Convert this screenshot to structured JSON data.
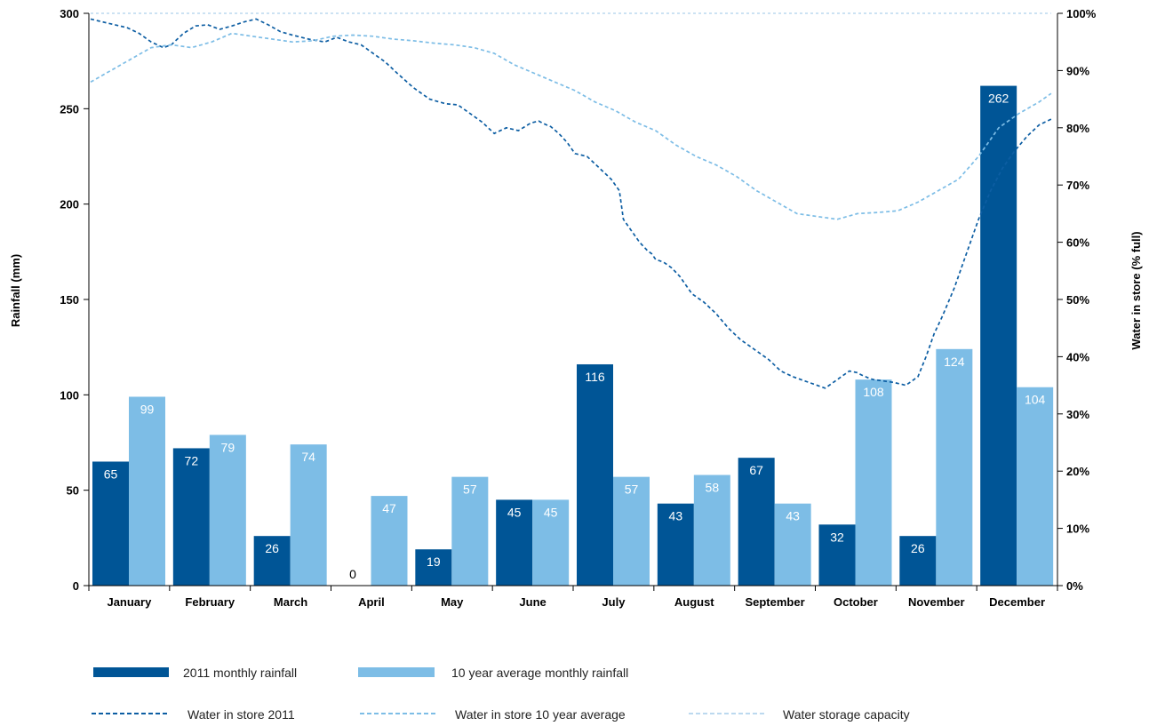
{
  "chart_data": {
    "type": "bar",
    "categories": [
      "January",
      "February",
      "March",
      "April",
      "May",
      "June",
      "July",
      "August",
      "September",
      "October",
      "November",
      "December"
    ],
    "ylabel": "Rainfall (mm)",
    "y2label": "Water in store (% full)",
    "ylim": [
      0,
      300
    ],
    "yticks": [
      "0",
      "50",
      "100",
      "150",
      "200",
      "250",
      "300"
    ],
    "y2lim": [
      0,
      100
    ],
    "y2ticks": [
      "0%",
      "10%",
      "20%",
      "30%",
      "40%",
      "50%",
      "60%",
      "70%",
      "80%",
      "90%",
      "100%"
    ],
    "grid": false,
    "legend_position": "bottom",
    "series": [
      {
        "name": "2011 monthly rainfall",
        "kind": "bar",
        "color": "#005596",
        "label_color": "#ffffff",
        "values": [
          65,
          72,
          26,
          0,
          19,
          45,
          116,
          43,
          67,
          32,
          26,
          262
        ]
      },
      {
        "name": "10 year average monthly rainfall",
        "kind": "bar",
        "color": "#7dbde6",
        "label_color": "#ffffff",
        "values": [
          99,
          79,
          74,
          47,
          57,
          45,
          57,
          58,
          43,
          108,
          124,
          104
        ]
      },
      {
        "name": "Water in store 2011",
        "kind": "line",
        "style": "dashed",
        "axis": "right",
        "color": "#0d5ea3",
        "x": [
          0,
          0.15,
          0.3,
          0.45,
          0.6,
          0.75,
          0.9,
          1.0,
          1.15,
          1.3,
          1.45,
          1.6,
          1.75,
          1.9,
          2.05,
          2.2,
          2.35,
          2.5,
          2.7,
          2.9,
          3.05,
          3.2,
          3.35,
          3.5,
          3.65,
          3.8,
          4.0,
          4.2,
          4.4,
          4.55,
          4.7,
          4.85,
          5.0,
          5.15,
          5.3,
          5.45,
          5.55,
          5.6,
          5.65,
          5.7,
          5.8,
          5.9,
          6.0,
          6.15,
          6.3,
          6.45,
          6.55,
          6.6,
          6.7,
          6.8,
          6.9,
          6.95,
          7.0,
          7.1,
          7.2,
          7.3,
          7.35,
          7.45,
          7.6,
          7.75,
          7.9,
          8.05,
          8.2,
          8.4,
          8.55,
          8.7,
          8.9,
          9.1,
          9.25,
          9.4,
          9.5,
          9.55,
          9.6,
          9.65,
          9.7,
          9.8,
          9.95,
          10.1,
          10.25,
          10.35,
          10.45,
          10.55,
          10.7,
          10.85,
          11.0,
          11.15,
          11.3,
          11.45,
          11.6,
          11.75,
          11.9
        ],
        "values": [
          99,
          98.5,
          98,
          97.5,
          96.5,
          95,
          94,
          94.5,
          96.5,
          97.8,
          98,
          97.2,
          97.8,
          98.5,
          99,
          98,
          96.8,
          96.2,
          95.5,
          95,
          95.8,
          95,
          94.5,
          93,
          91.5,
          89.5,
          87,
          85,
          84.2,
          84,
          82.5,
          81,
          79,
          80,
          79.5,
          80.8,
          81.2,
          80.8,
          80.5,
          80.2,
          79,
          77.5,
          75.5,
          75,
          73,
          71,
          69,
          64,
          62,
          60,
          58.5,
          58,
          57,
          56.5,
          55.5,
          54,
          53,
          51,
          49.5,
          47.5,
          45,
          43,
          41.5,
          39.5,
          37.5,
          36.5,
          35.5,
          34.5,
          36,
          37.5,
          37.2,
          36.8,
          36.5,
          36.2,
          36,
          35.8,
          35.5,
          35,
          36.5,
          40,
          44,
          47,
          52,
          58,
          64,
          69,
          73,
          76,
          78.5,
          80.5,
          81.5
        ]
      },
      {
        "name": "Water in store 10 year average",
        "kind": "line",
        "style": "dashed",
        "axis": "right",
        "color": "#7dbde6",
        "x": [
          0,
          0.25,
          0.5,
          0.75,
          1.0,
          1.25,
          1.5,
          1.75,
          2.0,
          2.25,
          2.5,
          2.75,
          3.0,
          3.25,
          3.5,
          3.75,
          4.0,
          4.25,
          4.5,
          4.75,
          5.0,
          5.25,
          5.5,
          5.75,
          6.0,
          6.25,
          6.5,
          6.75,
          7.0,
          7.25,
          7.5,
          7.75,
          8.0,
          8.25,
          8.5,
          8.75,
          9.0,
          9.25,
          9.5,
          9.75,
          10.0,
          10.25,
          10.5,
          10.75,
          11.0,
          11.25,
          11.5,
          11.75,
          11.9
        ],
        "values": [
          88,
          90,
          92,
          94,
          94.5,
          94,
          95,
          96.5,
          96,
          95.5,
          95,
          95.2,
          96,
          96.2,
          96,
          95.5,
          95.2,
          94.8,
          94.5,
          94,
          93,
          91,
          89.5,
          88,
          86.5,
          84.5,
          83,
          81,
          79.5,
          77,
          75,
          73.5,
          71.5,
          69,
          67,
          65,
          64.5,
          64,
          65,
          65.2,
          65.5,
          67,
          69,
          71,
          75,
          80,
          82.5,
          84.5,
          86
        ]
      },
      {
        "name": "Water storage capacity",
        "kind": "line",
        "style": "dashed",
        "axis": "right",
        "color": "#bcd9ef",
        "x": [
          0,
          11.9
        ],
        "values": [
          100,
          100
        ]
      }
    ]
  }
}
